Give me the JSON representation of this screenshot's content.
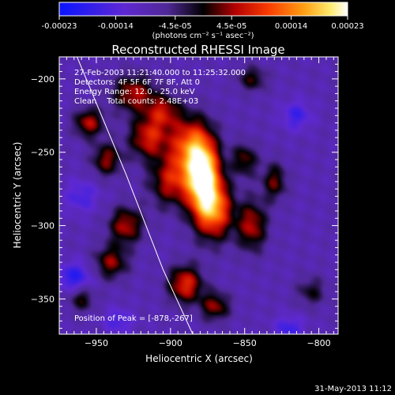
{
  "chart_data": {
    "type": "heatmap",
    "title": "Reconstructed RHESSI Image",
    "xlabel": "Heliocentric X (arcsec)",
    "ylabel": "Heliocentric Y (arcsec)",
    "xlim": [
      -975,
      -787
    ],
    "ylim": [
      -374,
      -185
    ],
    "x_ticks": [
      -950,
      -900,
      -850,
      -800
    ],
    "y_ticks": [
      -200,
      -250,
      -300,
      -350
    ],
    "colorbar": {
      "min": -0.00023,
      "max": 0.00023,
      "tick_values": [
        -0.00023,
        -0.00014,
        -4.5e-05,
        4.5e-05,
        0.00014,
        0.00023
      ],
      "tick_labels": [
        "-0.00023",
        "-0.00014",
        "-4.5e-05",
        "4.5e-05",
        "0.00014",
        "0.00023"
      ],
      "unit_label": "(photons cm⁻² s⁻¹ asec⁻²)"
    },
    "annotations": [
      "27-Feb-2003 11:21:40.000 to 11:25:32.000",
      "Detectors: 4F 5F 6F 7F 8F, Att 0",
      "Energy Range: 12.0 - 25.0 keV",
      "Clean    Total counts: 2.48E+03"
    ],
    "peak_label": "Position of Peak = [-878,-267]",
    "peak": {
      "x": -878,
      "y": -267
    },
    "limb_points": [
      [
        -963,
        -185
      ],
      [
        -930,
        -265
      ],
      [
        -905,
        -330
      ],
      [
        -885,
        -374
      ]
    ],
    "sources": [
      {
        "x": -878,
        "y": -267,
        "amp": 1.0,
        "sx": 8,
        "sy": 18
      },
      {
        "x": -888,
        "y": -245,
        "amp": 0.55,
        "sx": 10,
        "sy": 14
      },
      {
        "x": -870,
        "y": -290,
        "amp": 0.6,
        "sx": 9,
        "sy": 14
      },
      {
        "x": -900,
        "y": -270,
        "amp": 0.45,
        "sx": 10,
        "sy": 12
      },
      {
        "x": -915,
        "y": -240,
        "amp": 0.5,
        "sx": 9,
        "sy": 10
      },
      {
        "x": -925,
        "y": -210,
        "amp": 0.45,
        "sx": 10,
        "sy": 9
      },
      {
        "x": -905,
        "y": -222,
        "amp": 0.4,
        "sx": 8,
        "sy": 8
      },
      {
        "x": -955,
        "y": -230,
        "amp": 0.45,
        "sx": 7,
        "sy": 7
      },
      {
        "x": -943,
        "y": -255,
        "amp": 0.4,
        "sx": 7,
        "sy": 8
      },
      {
        "x": -930,
        "y": -300,
        "amp": 0.45,
        "sx": 8,
        "sy": 9
      },
      {
        "x": -940,
        "y": -325,
        "amp": 0.4,
        "sx": 8,
        "sy": 8
      },
      {
        "x": -890,
        "y": -340,
        "amp": 0.55,
        "sx": 8,
        "sy": 9
      },
      {
        "x": -870,
        "y": -355,
        "amp": 0.4,
        "sx": 7,
        "sy": 7
      },
      {
        "x": -845,
        "y": -300,
        "amp": 0.45,
        "sx": 7,
        "sy": 12
      },
      {
        "x": -850,
        "y": -255,
        "amp": 0.35,
        "sx": 6,
        "sy": 8
      },
      {
        "x": -830,
        "y": -270,
        "amp": 0.35,
        "sx": 6,
        "sy": 9
      },
      {
        "x": -845,
        "y": -200,
        "amp": 0.3,
        "sx": 7,
        "sy": 6
      },
      {
        "x": -805,
        "y": -345,
        "amp": 0.25,
        "sx": 7,
        "sy": 7
      },
      {
        "x": -960,
        "y": -350,
        "amp": 0.3,
        "sx": 6,
        "sy": 6
      },
      {
        "x": -815,
        "y": -225,
        "amp": -0.35,
        "sx": 7,
        "sy": 7
      },
      {
        "x": -960,
        "y": -280,
        "amp": -0.3,
        "sx": 8,
        "sy": 8
      },
      {
        "x": -965,
        "y": -335,
        "amp": -0.45,
        "sx": 8,
        "sy": 7
      },
      {
        "x": -820,
        "y": -370,
        "amp": -0.35,
        "sx": 7,
        "sy": 6
      },
      {
        "x": -935,
        "y": -365,
        "amp": -0.3,
        "sx": 7,
        "sy": 6
      }
    ]
  },
  "footer": {
    "timestamp": "31-May-2013 11:12"
  }
}
